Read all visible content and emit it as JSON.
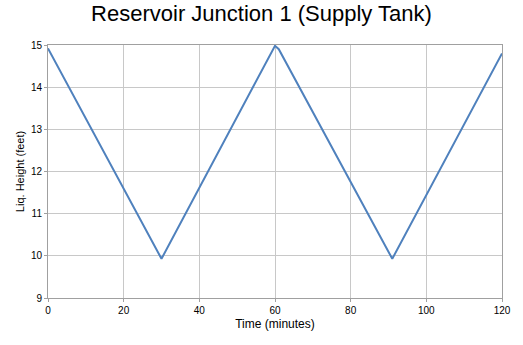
{
  "chart_data": {
    "type": "line",
    "title": "Reservoir Junction 1 (Supply Tank)",
    "x_label": "Time (minutes)",
    "y_label": "Liq. Height (feet)",
    "x": [
      0,
      30,
      60,
      61,
      91,
      120
    ],
    "values": [
      14.92,
      9.93,
      14.98,
      14.9,
      9.93,
      14.8
    ],
    "color": "#4f81bd",
    "xlim": [
      0,
      120
    ],
    "xticks": [
      0,
      20,
      40,
      60,
      80,
      100,
      120
    ],
    "ylim": [
      9,
      15
    ],
    "yticks": [
      9,
      10,
      11,
      12,
      13,
      14,
      15
    ],
    "grid": true
  }
}
